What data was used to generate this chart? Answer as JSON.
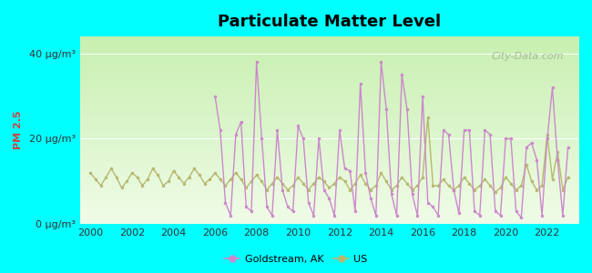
{
  "title": "Particulate Matter Level",
  "ylabel": "PM 2.5",
  "xlabel": "",
  "background_color": "#00FFFF",
  "plot_bg_top": "#d4edda",
  "plot_bg_bottom": "#f0fce0",
  "goldstream_color": "#cc88cc",
  "us_color": "#b8b870",
  "ylim": [
    0,
    44
  ],
  "yticks": [
    0,
    20,
    40
  ],
  "ytick_labels": [
    "0 μg/m³",
    "20 μg/m³",
    "40 μg/m³"
  ],
  "xlim_start": 1999.5,
  "xlim_end": 2023.5,
  "xticks": [
    2000,
    2002,
    2004,
    2006,
    2008,
    2010,
    2012,
    2014,
    2016,
    2018,
    2020,
    2022
  ],
  "legend_labels": [
    "Goldstream, AK",
    "US"
  ],
  "watermark": "City-Data.com",
  "goldstream_data": {
    "years": [
      2006.0,
      2006.25,
      2006.5,
      2006.75,
      2007.0,
      2007.25,
      2007.5,
      2007.75,
      2008.0,
      2008.25,
      2008.5,
      2008.75,
      2009.0,
      2009.25,
      2009.5,
      2009.75,
      2010.0,
      2010.25,
      2010.5,
      2010.75,
      2011.0,
      2011.25,
      2011.5,
      2011.75,
      2012.0,
      2012.25,
      2012.5,
      2012.75,
      2013.0,
      2013.25,
      2013.5,
      2013.75,
      2014.0,
      2014.25,
      2014.5,
      2014.75,
      2015.0,
      2015.25,
      2015.5,
      2015.75,
      2016.0,
      2016.25,
      2016.5,
      2016.75,
      2017.0,
      2017.25,
      2017.5,
      2017.75,
      2018.0,
      2018.25,
      2018.5,
      2018.75,
      2019.0,
      2019.25,
      2019.5,
      2019.75,
      2020.0,
      2020.25,
      2020.5,
      2020.75,
      2021.0,
      2021.25,
      2021.5,
      2021.75,
      2022.0,
      2022.25,
      2022.5,
      2022.75,
      2023.0
    ],
    "values": [
      30.0,
      22.0,
      5.0,
      2.0,
      21.0,
      24.0,
      4.0,
      3.0,
      38.0,
      20.0,
      4.0,
      2.0,
      22.0,
      8.0,
      4.0,
      3.0,
      23.0,
      20.0,
      5.0,
      2.0,
      20.0,
      8.0,
      6.0,
      2.0,
      22.0,
      13.0,
      12.5,
      3.0,
      33.0,
      12.0,
      6.0,
      2.0,
      38.0,
      27.0,
      7.0,
      2.0,
      35.0,
      27.0,
      7.0,
      2.0,
      30.0,
      5.0,
      4.0,
      2.0,
      22.0,
      21.0,
      8.0,
      2.5,
      22.0,
      22.0,
      3.0,
      2.0,
      22.0,
      21.0,
      3.0,
      2.0,
      20.0,
      20.0,
      3.0,
      1.5,
      18.0,
      19.0,
      15.0,
      2.0,
      20.0,
      32.0,
      15.0,
      2.0,
      18.0
    ]
  },
  "us_data": {
    "years": [
      2000.0,
      2000.25,
      2000.5,
      2000.75,
      2001.0,
      2001.25,
      2001.5,
      2001.75,
      2002.0,
      2002.25,
      2002.5,
      2002.75,
      2003.0,
      2003.25,
      2003.5,
      2003.75,
      2004.0,
      2004.25,
      2004.5,
      2004.75,
      2005.0,
      2005.25,
      2005.5,
      2005.75,
      2006.0,
      2006.25,
      2006.5,
      2006.75,
      2007.0,
      2007.25,
      2007.5,
      2007.75,
      2008.0,
      2008.25,
      2008.5,
      2008.75,
      2009.0,
      2009.25,
      2009.5,
      2009.75,
      2010.0,
      2010.25,
      2010.5,
      2010.75,
      2011.0,
      2011.25,
      2011.5,
      2011.75,
      2012.0,
      2012.25,
      2012.5,
      2012.75,
      2013.0,
      2013.25,
      2013.5,
      2013.75,
      2014.0,
      2014.25,
      2014.5,
      2014.75,
      2015.0,
      2015.25,
      2015.5,
      2015.75,
      2016.0,
      2016.25,
      2016.5,
      2016.75,
      2017.0,
      2017.25,
      2017.5,
      2017.75,
      2018.0,
      2018.25,
      2018.5,
      2018.75,
      2019.0,
      2019.25,
      2019.5,
      2019.75,
      2020.0,
      2020.25,
      2020.5,
      2020.75,
      2021.0,
      2021.25,
      2021.5,
      2021.75,
      2022.0,
      2022.25,
      2022.5,
      2022.75,
      2023.0
    ],
    "values": [
      12.0,
      10.5,
      9.0,
      11.0,
      13.0,
      11.0,
      8.5,
      10.0,
      12.0,
      11.0,
      9.0,
      10.5,
      13.0,
      11.5,
      9.0,
      10.0,
      12.5,
      11.0,
      9.5,
      11.0,
      13.0,
      11.5,
      9.5,
      10.5,
      12.0,
      10.5,
      9.0,
      10.5,
      12.0,
      10.5,
      8.5,
      10.0,
      11.5,
      10.0,
      8.0,
      9.5,
      11.0,
      9.5,
      8.0,
      9.0,
      11.0,
      9.5,
      8.0,
      9.5,
      11.0,
      10.0,
      8.5,
      9.5,
      11.0,
      10.0,
      8.0,
      9.5,
      11.5,
      9.5,
      8.0,
      9.0,
      12.0,
      10.0,
      8.0,
      9.0,
      11.0,
      9.5,
      8.0,
      9.0,
      11.0,
      25.0,
      9.0,
      9.0,
      10.5,
      9.0,
      8.0,
      9.0,
      11.0,
      9.5,
      8.0,
      9.0,
      10.5,
      9.0,
      7.5,
      8.5,
      11.0,
      9.5,
      8.0,
      9.0,
      14.0,
      10.0,
      8.0,
      9.0,
      21.0,
      10.5,
      17.0,
      8.0,
      11.0
    ]
  }
}
